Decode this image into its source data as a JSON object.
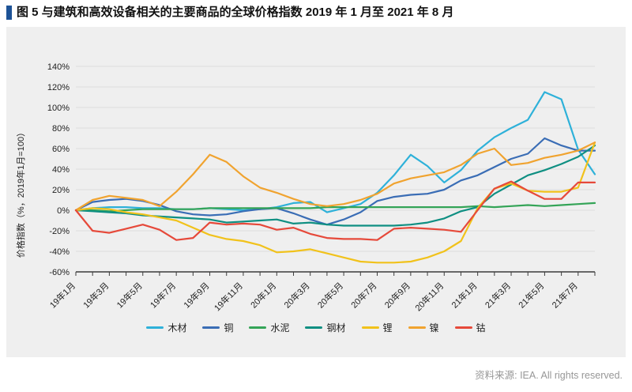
{
  "header": {
    "title": "图 5 与建筑和高效设备相关的主要商品的全球价格指数 2019 年 1 月至 2021 年 8 月",
    "accent_color": "#1d5296"
  },
  "footer": {
    "source": "资料来源: IEA. All rights reserved."
  },
  "chart_data": {
    "type": "line",
    "title": "与建筑和高效设备相关的主要商品的全球价格指数 2019 年 1 月至 2021 年 8 月",
    "y_axis_label": "价格指数（%，2019年1月=100）",
    "ylim": [
      -60,
      140
    ],
    "y_tick_step": 20,
    "y_ticks": [
      "140%",
      "120%",
      "100%",
      "80%",
      "60%",
      "40%",
      "20%",
      "0%",
      "-20%",
      "-40%",
      "-60%"
    ],
    "y_tick_values": [
      140,
      120,
      100,
      80,
      60,
      40,
      20,
      0,
      -20,
      -40,
      -60
    ],
    "x_tick_labels": [
      "19年1月",
      "19年3月",
      "19年5月",
      "19年7月",
      "19年9月",
      "19年11月",
      "20年1月",
      "20年3月",
      "20年5月",
      "20年7月",
      "20年9月",
      "20年11月",
      "21年1月",
      "21年3月",
      "21年5月",
      "21年7月"
    ],
    "months_total": 32,
    "grid": true,
    "legend_position": "bottom",
    "panel_background": "#efefef",
    "series": [
      {
        "name": "木材",
        "id": "lumber",
        "color": "#2eb1d9",
        "values": [
          0,
          2,
          3,
          3,
          2,
          2,
          1,
          1,
          2,
          1,
          0,
          1,
          3,
          7,
          8,
          -2,
          2,
          6,
          17,
          34,
          54,
          43,
          27,
          39,
          58,
          71,
          80,
          88,
          115,
          108,
          59,
          35
        ]
      },
      {
        "name": "铜",
        "id": "copper",
        "color": "#3a6db5",
        "values": [
          0,
          8,
          10,
          11,
          9,
          5,
          -1,
          -4,
          -5,
          -4,
          -1,
          1,
          2,
          -3,
          -9,
          -14,
          -9,
          -2,
          9,
          13,
          15,
          16,
          20,
          29,
          34,
          42,
          50,
          55,
          70,
          63,
          58,
          58
        ]
      },
      {
        "name": "水泥",
        "id": "cement",
        "color": "#34a457",
        "values": [
          0,
          0,
          -1,
          0,
          1,
          1,
          1,
          1,
          2,
          2,
          2,
          2,
          2,
          2,
          2,
          3,
          3,
          3,
          3,
          3,
          3,
          3,
          3,
          3,
          4,
          3,
          4,
          5,
          4,
          5,
          6,
          7
        ]
      },
      {
        "name": "钢材",
        "id": "steel",
        "color": "#0f8f82",
        "values": [
          0,
          -1,
          -2,
          -3,
          -5,
          -6,
          -7,
          -8,
          -9,
          -12,
          -11,
          -10,
          -9,
          -13,
          -12,
          -14,
          -15,
          -15,
          -15,
          -15,
          -14,
          -12,
          -8,
          -1,
          3,
          16,
          25,
          34,
          39,
          45,
          52,
          63
        ]
      },
      {
        "name": "锂",
        "id": "lithium",
        "color": "#f1c21b",
        "values": [
          0,
          2,
          1,
          -2,
          -4,
          -7,
          -10,
          -17,
          -24,
          -28,
          -30,
          -34,
          -41,
          -40,
          -38,
          -42,
          -46,
          -50,
          -51,
          -51,
          -50,
          -46,
          -40,
          -30,
          2,
          21,
          26,
          19,
          18,
          18,
          22,
          66
        ]
      },
      {
        "name": "镍",
        "id": "nickel",
        "color": "#f0a32f",
        "values": [
          0,
          10,
          14,
          12,
          10,
          4,
          18,
          35,
          54,
          47,
          33,
          22,
          17,
          11,
          6,
          4,
          6,
          10,
          16,
          26,
          31,
          34,
          37,
          44,
          55,
          60,
          44,
          46,
          51,
          54,
          58,
          66
        ]
      },
      {
        "name": "钴",
        "id": "cobalt",
        "color": "#e6493a",
        "values": [
          0,
          -20,
          -22,
          -18,
          -14,
          -19,
          -29,
          -27,
          -12,
          -14,
          -13,
          -14,
          -19,
          -17,
          -23,
          -27,
          -28,
          -28,
          -29,
          -18,
          -17,
          -18,
          -19,
          -21,
          0,
          21,
          28,
          19,
          11,
          11,
          27,
          27
        ]
      }
    ]
  }
}
